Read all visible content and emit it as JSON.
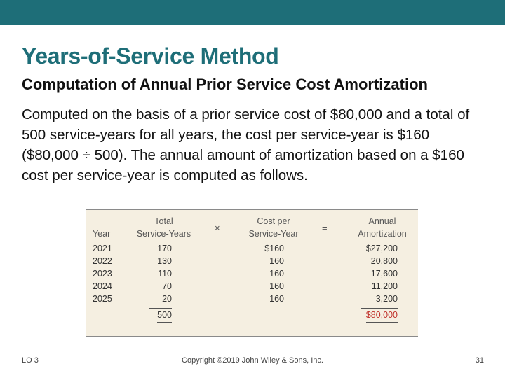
{
  "slide": {
    "title": "Years-of-Service Method",
    "subtitle": "Computation of Annual Prior Service Cost Amortization",
    "body": "Computed on the basis of a prior service cost of $80,000 and a total of 500 service-years for all years, the cost per service-year is $160 ($80,000 ÷ 500). The annual amount of amortization based on a $160 cost per service-year is computed as follows."
  },
  "table": {
    "headers": {
      "year": "Year",
      "total_line1": "Total",
      "total_line2": "Service-Years",
      "times": "×",
      "cost_line1": "Cost per",
      "cost_line2": "Service-Year",
      "equals": "=",
      "amort_line1": "Annual",
      "amort_line2": "Amortization"
    },
    "rows": [
      {
        "year": "2021",
        "service_years": "170",
        "cost": "$160",
        "amortization": "$27,200"
      },
      {
        "year": "2022",
        "service_years": "130",
        "cost": "160",
        "amortization": "20,800"
      },
      {
        "year": "2023",
        "service_years": "110",
        "cost": "160",
        "amortization": "17,600"
      },
      {
        "year": "2024",
        "service_years": "70",
        "cost": "160",
        "amortization": "11,200"
      },
      {
        "year": "2025",
        "service_years": "20",
        "cost": "160",
        "amortization": "3,200"
      }
    ],
    "totals": {
      "service_years": "500",
      "amortization": "$80,000"
    }
  },
  "footer": {
    "lo": "LO 3",
    "copyright": "Copyright ©2019 John Wiley & Sons, Inc.",
    "page": "31"
  },
  "colors": {
    "accent": "#1e6e78",
    "table_bg": "#f5efe1",
    "total_red": "#c0302a"
  }
}
